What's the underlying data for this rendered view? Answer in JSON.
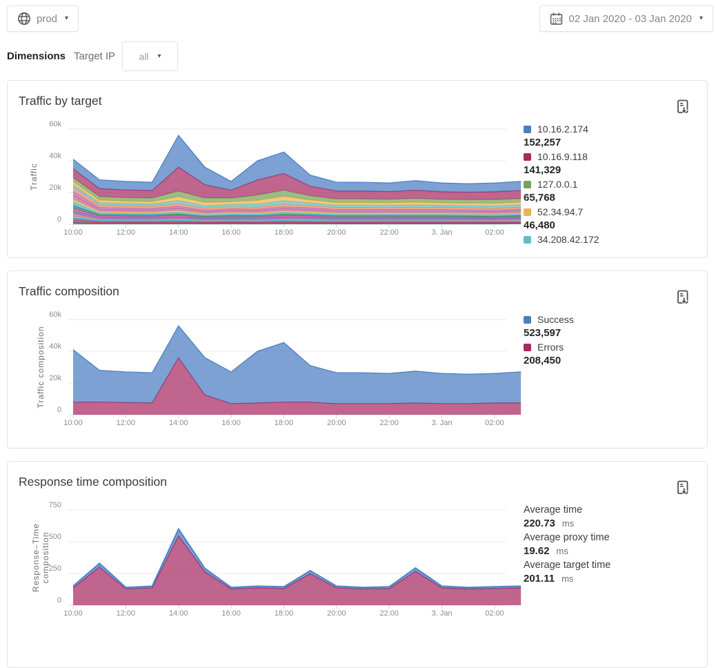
{
  "toolbar": {
    "env_button": {
      "label": "prod"
    },
    "date_button": {
      "label": "02 Jan 2020 - 03 Jan 2020"
    }
  },
  "filters": {
    "dimensions_label": "Dimensions",
    "target_ip_label": "Target IP",
    "target_ip_value": "all"
  },
  "colors": {
    "accent_blue": "#4a7dc1",
    "accent_maroon": "#a82962",
    "accent_green": "#77a258",
    "accent_gold": "#eab550",
    "accent_teal": "#5fbfc4",
    "grid": "#e9e9e9",
    "tick_text": "#8b8b8b"
  },
  "chart_data": [
    {
      "type": "area",
      "stacked": true,
      "title": "Traffic by target",
      "ylabel": "Traffic",
      "ylabel_lines": [
        "Traffic"
      ],
      "x": [
        "10:00",
        "11:00",
        "12:00",
        "13:00",
        "14:00",
        "15:00",
        "16:00",
        "17:00",
        "18:00",
        "19:00",
        "20:00",
        "21:00",
        "22:00",
        "23:00",
        "3. Jan",
        "01:00",
        "02:00",
        "03:00"
      ],
      "xtick_labels": [
        "10:00",
        "12:00",
        "14:00",
        "16:00",
        "18:00",
        "20:00",
        "22:00",
        "3. Jan",
        "02:00"
      ],
      "ytick_labels": [
        "0",
        "20k",
        "40k",
        "60k"
      ],
      "ytick_step_value": 20000,
      "ylim": [
        0,
        63000
      ],
      "grid": true,
      "legend_position": "right",
      "legend": [
        {
          "label": "10.16.2.174",
          "value": "152,257",
          "color": "#4a7dc1"
        },
        {
          "label": "10.16.9.118",
          "value": "141,329",
          "color": "#a82962"
        },
        {
          "label": "127.0.0.1",
          "value": "65,768",
          "color": "#77a258"
        },
        {
          "label": "52.34.94.7",
          "value": "46,480",
          "color": "#eab550"
        },
        {
          "label": "34.208.42.172",
          "value": "",
          "color": "#5fbfc4"
        }
      ],
      "series": [
        {
          "name": "34.208.42.172",
          "color": "#5fbfc4",
          "values": [
            1600,
            1400,
            1400,
            1300,
            2000,
            1600,
            1400,
            1900,
            2200,
            1600,
            1400,
            1400,
            1300,
            1500,
            1300,
            1300,
            1400,
            1400
          ]
        },
        {
          "name": "52.34.94.7",
          "color": "#eab550",
          "values": [
            1900,
            1700,
            1600,
            1600,
            2500,
            2000,
            1700,
            2400,
            2800,
            1900,
            1700,
            1700,
            1600,
            1800,
            1600,
            1600,
            1700,
            1700
          ]
        },
        {
          "name": "127.0.0.1",
          "color": "#77a258",
          "values": [
            2600,
            2300,
            2200,
            2200,
            3600,
            2800,
            2300,
            3400,
            3900,
            2700,
            2300,
            2300,
            2200,
            2400,
            2200,
            2200,
            2300,
            2300
          ]
        },
        {
          "name": "10.16.9.118",
          "color": "#a82962",
          "values": [
            5500,
            5000,
            4900,
            4800,
            15000,
            8500,
            5000,
            9500,
            10500,
            6000,
            5000,
            5000,
            4800,
            5200,
            4800,
            4700,
            5000,
            5100
          ]
        },
        {
          "name": "10.16.2.174",
          "color": "#4a7dc1",
          "values": [
            6000,
            5500,
            5300,
            5200,
            20000,
            11000,
            5500,
            12000,
            13500,
            7000,
            5500,
            5500,
            5400,
            6000,
            5500,
            5300,
            5500,
            5700
          ]
        }
      ],
      "unnamed_bands": {
        "colors": [
          "#256e63",
          "#c23b56",
          "#8e4a9e",
          "#3bbfce",
          "#e06a6a",
          "#5b6abf",
          "#d943a5",
          "#2e7d5b",
          "#45b5dd",
          "#c9b458",
          "#d4608f",
          "#b06ab8",
          "#ec8a5e"
        ],
        "weights": [
          0.05,
          0.05,
          0.06,
          0.06,
          0.07,
          0.07,
          0.07,
          0.08,
          0.08,
          0.09,
          0.1,
          0.1,
          0.12
        ],
        "remainder": [
          23400,
          12100,
          11600,
          11400,
          12900,
          10100,
          11100,
          10800,
          12600,
          11800,
          10600,
          10600,
          10700,
          10600,
          10600,
          10400,
          10100,
          10800
        ]
      }
    },
    {
      "type": "area",
      "stacked": true,
      "title": "Traffic composition",
      "ylabel": "Traffic composition",
      "ylabel_lines": [
        "Traffic composition"
      ],
      "x": [
        "10:00",
        "11:00",
        "12:00",
        "13:00",
        "14:00",
        "15:00",
        "16:00",
        "17:00",
        "18:00",
        "19:00",
        "20:00",
        "21:00",
        "22:00",
        "23:00",
        "3. Jan",
        "01:00",
        "02:00",
        "03:00"
      ],
      "xtick_labels": [
        "10:00",
        "12:00",
        "14:00",
        "16:00",
        "18:00",
        "20:00",
        "22:00",
        "3. Jan",
        "02:00"
      ],
      "ytick_labels": [
        "0",
        "20k",
        "40k",
        "60k"
      ],
      "ytick_step_value": 20000,
      "ylim": [
        0,
        63000
      ],
      "grid": true,
      "legend_position": "right",
      "legend": [
        {
          "label": "Success",
          "value": "523,597",
          "color": "#4a7dc1"
        },
        {
          "label": "Errors",
          "value": "208,450",
          "color": "#a82962"
        }
      ],
      "series": [
        {
          "name": "Errors",
          "color": "#a82962",
          "values": [
            8000,
            8000,
            7800,
            7500,
            36000,
            12500,
            7000,
            7500,
            8000,
            8000,
            7000,
            7000,
            7000,
            7500,
            7000,
            7000,
            7500,
            7500
          ]
        },
        {
          "name": "Success",
          "color": "#4a7dc1",
          "values": [
            33000,
            20000,
            19200,
            19000,
            20000,
            23500,
            20000,
            32500,
            37500,
            23000,
            19500,
            19500,
            19000,
            20000,
            19000,
            18500,
            18500,
            19500
          ]
        }
      ]
    },
    {
      "type": "area",
      "stacked": true,
      "title": "Response time composition",
      "ylabel": "Response–Time composition",
      "ylabel_lines": [
        "Response–Time",
        "composition"
      ],
      "x": [
        "10:00",
        "11:00",
        "12:00",
        "13:00",
        "14:00",
        "15:00",
        "16:00",
        "17:00",
        "18:00",
        "19:00",
        "20:00",
        "21:00",
        "22:00",
        "23:00",
        "3. Jan",
        "01:00",
        "02:00",
        "03:00"
      ],
      "xtick_labels": [
        "10:00",
        "12:00",
        "14:00",
        "16:00",
        "18:00",
        "20:00",
        "22:00",
        "3. Jan",
        "02:00"
      ],
      "ytick_labels": [
        "0",
        "250",
        "500",
        "750"
      ],
      "ytick_step_value": 250,
      "ylim": [
        0,
        840
      ],
      "grid": true,
      "stats": [
        {
          "label": "Average time",
          "value": "220.73",
          "unit": "ms"
        },
        {
          "label": "Average proxy time",
          "value": "19.62",
          "unit": "ms"
        },
        {
          "label": "Average target time",
          "value": "201.11",
          "unit": "ms"
        }
      ],
      "series": [
        {
          "name": "Target time",
          "color": "#a82962",
          "stroke_width": 1.5,
          "values": [
            137,
            301,
            128,
            137,
            547,
            264,
            128,
            137,
            132,
            248,
            137,
            128,
            132,
            267,
            137,
            128,
            132,
            137
          ]
        },
        {
          "name": "Proxy time",
          "color": "#4a7dc1",
          "stroke_width": 2,
          "values": [
            13,
            29,
            12,
            13,
            53,
            26,
            12,
            13,
            13,
            24,
            13,
            12,
            13,
            26,
            13,
            12,
            13,
            13
          ]
        }
      ]
    }
  ]
}
